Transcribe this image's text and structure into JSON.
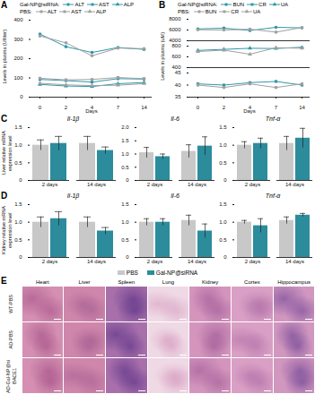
{
  "chart_data": [
    {
      "panel": "A",
      "type": "line",
      "x_label": "Days",
      "y_label": "Levels in plasma (U/liter)",
      "categories": [
        "0",
        "2",
        "4",
        "7",
        "14"
      ],
      "ylim": [
        0,
        400
      ],
      "yticks": [
        0,
        100,
        200,
        300,
        400
      ],
      "legend": "top",
      "series": [
        {
          "group": "Gal-NP@siRNA:",
          "name": "ALT",
          "color": "#2f98a8",
          "marker": "circle",
          "values": [
            328,
            262,
            232,
            258,
            248
          ]
        },
        {
          "group": "Gal-NP@siRNA:",
          "name": "AST",
          "color": "#2f98a8",
          "marker": "square",
          "values": [
            92,
            86,
            78,
            96,
            94
          ]
        },
        {
          "group": "Gal-NP@siRNA:",
          "name": "ALP",
          "color": "#2f98a8",
          "marker": "triangle",
          "values": [
            66,
            58,
            55,
            70,
            76
          ]
        },
        {
          "group": "PBS:",
          "name": "ALT",
          "color": "#a0a0a0",
          "marker": "circle",
          "values": [
            318,
            282,
            215,
            255,
            252
          ]
        },
        {
          "group": "PBS:",
          "name": "AST",
          "color": "#a0a0a0",
          "marker": "square",
          "values": [
            98,
            90,
            92,
            102,
            96
          ]
        },
        {
          "group": "PBS:",
          "name": "ALP",
          "color": "#a0a0a0",
          "marker": "triangle",
          "values": [
            72,
            64,
            60,
            62,
            70
          ]
        }
      ]
    },
    {
      "panel": "B",
      "type": "line",
      "x_label": "Days",
      "y_label": "Levels in plasma (uM)",
      "categories": [
        "0",
        "2",
        "4",
        "7",
        "14"
      ],
      "legend": "top",
      "segments": [
        {
          "ylim": [
            4000,
            8000
          ],
          "yticks": [
            4000,
            6000,
            8000
          ]
        },
        {
          "ylim": [
            400,
            800
          ],
          "yticks": [
            400,
            600,
            800
          ]
        },
        {
          "ylim": [
            35,
            45
          ],
          "yticks": [
            35,
            40,
            45
          ]
        }
      ],
      "series": [
        {
          "group": "Gal-NP@siRNA:",
          "name": "BUN",
          "segment": 0,
          "color": "#2f98a8",
          "marker": "circle",
          "values": [
            6200,
            6350,
            5900,
            6500,
            6400
          ]
        },
        {
          "group": "Gal-NP@siRNA:",
          "name": "CR",
          "segment": 2,
          "color": "#2f98a8",
          "marker": "square",
          "values": [
            40.5,
            40,
            41,
            41.5,
            40
          ]
        },
        {
          "group": "Gal-NP@siRNA:",
          "name": "UA",
          "segment": 1,
          "color": "#2f98a8",
          "marker": "triangle",
          "values": [
            720,
            740,
            760,
            755,
            780
          ]
        },
        {
          "group": "PBS:",
          "name": "BUN",
          "segment": 0,
          "color": "#a0a0a0",
          "marker": "circle",
          "values": [
            6050,
            6000,
            6150,
            5600,
            6450
          ]
        },
        {
          "group": "PBS:",
          "name": "CR",
          "segment": 2,
          "color": "#a0a0a0",
          "marker": "square",
          "values": [
            40,
            39,
            40.5,
            39,
            40.5
          ]
        },
        {
          "group": "PBS:",
          "name": "UA",
          "segment": 1,
          "color": "#a0a0a0",
          "marker": "triangle",
          "values": [
            700,
            725,
            650,
            770,
            760
          ]
        }
      ]
    },
    {
      "panel": "C",
      "type": "bar",
      "title": "Il-1β",
      "y_label": "Liver relative mRNA expression level",
      "categories": [
        "2 days",
        "14 days"
      ],
      "ylim": [
        0,
        1.5
      ],
      "yticks": [
        0,
        0.5,
        {
          "value": 1,
          "label": "1.0"
        },
        1.5
      ],
      "series": [
        {
          "name": "PBS",
          "color": "#c8c8c8",
          "values": [
            1.0,
            1.05
          ],
          "errors": [
            0.15,
            0.2
          ]
        },
        {
          "name": "Gal-NP@siRNA",
          "color": "#2c8c9c",
          "values": [
            1.05,
            0.85
          ],
          "errors": [
            0.2,
            0.1
          ]
        }
      ]
    },
    {
      "panel": "C",
      "type": "bar",
      "title": "Il-6",
      "categories": [
        "2 days",
        "14 days"
      ],
      "ylim": [
        0,
        2
      ],
      "yticks": [
        0,
        0.5,
        {
          "value": 1,
          "label": "1.0"
        },
        1.5,
        {
          "value": 2,
          "label": "2.0"
        }
      ],
      "series": [
        {
          "name": "PBS",
          "color": "#c8c8c8",
          "values": [
            1.05,
            1.1
          ],
          "errors": [
            0.2,
            0.25
          ]
        },
        {
          "name": "Gal-NP@siRNA",
          "color": "#2c8c9c",
          "values": [
            0.9,
            1.3
          ],
          "errors": [
            0.1,
            0.35
          ]
        }
      ]
    },
    {
      "panel": "C",
      "type": "bar",
      "title": "Tnf-α",
      "categories": [
        "2 days",
        "14 days"
      ],
      "ylim": [
        0,
        1.5
      ],
      "yticks": [
        0,
        0.5,
        {
          "value": 1,
          "label": "1.0"
        },
        1.5
      ],
      "series": [
        {
          "name": "PBS",
          "color": "#c8c8c8",
          "values": [
            1.0,
            1.05
          ],
          "errors": [
            0.1,
            0.2
          ]
        },
        {
          "name": "Gal-NP@siRNA",
          "color": "#2c8c9c",
          "values": [
            1.05,
            1.2
          ],
          "errors": [
            0.15,
            0.28
          ]
        }
      ]
    },
    {
      "panel": "D",
      "type": "bar",
      "title": "Il-1β",
      "y_label": "Kidney relative mRNA expression level",
      "legend": "bottom",
      "categories": [
        "2 days",
        "14 days"
      ],
      "ylim": [
        0,
        1.5
      ],
      "yticks": [
        0,
        0.5,
        {
          "value": 1,
          "label": "1.0"
        },
        1.5
      ],
      "series": [
        {
          "name": "PBS",
          "color": "#c8c8c8",
          "values": [
            1.0,
            1.0
          ],
          "errors": [
            0.15,
            0.15
          ]
        },
        {
          "name": "Gal-NP@siRNA",
          "color": "#2c8c9c",
          "values": [
            1.1,
            0.75
          ],
          "errors": [
            0.2,
            0.1
          ]
        }
      ]
    },
    {
      "panel": "D",
      "type": "bar",
      "title": "Il-6",
      "categories": [
        "2 days",
        "14 days"
      ],
      "ylim": [
        0,
        1.5
      ],
      "yticks": [
        0,
        0.5,
        {
          "value": 1,
          "label": "1.0"
        },
        1.5
      ],
      "series": [
        {
          "name": "PBS",
          "color": "#c8c8c8",
          "values": [
            1.0,
            1.05
          ],
          "errors": [
            0.1,
            0.15
          ]
        },
        {
          "name": "Gal-NP@siRNA",
          "color": "#2c8c9c",
          "values": [
            1.0,
            0.75
          ],
          "errors": [
            0.1,
            0.2
          ]
        }
      ]
    },
    {
      "panel": "D",
      "type": "bar",
      "title": "Tnf-α",
      "categories": [
        "2 days",
        "14 days"
      ],
      "ylim": [
        0,
        1.5
      ],
      "yticks": [
        0,
        0.5,
        {
          "value": 1,
          "label": "1.0"
        },
        1.5
      ],
      "series": [
        {
          "name": "PBS",
          "color": "#c8c8c8",
          "values": [
            1.0,
            1.05
          ],
          "errors": [
            0.05,
            0.1
          ]
        },
        {
          "name": "Gal-NP@siRNA",
          "color": "#2c8c9c",
          "values": [
            0.9,
            1.2
          ],
          "errors": [
            0.2,
            0.05
          ]
        }
      ]
    }
  ],
  "image_grid": {
    "panel": "E",
    "columns": [
      "Heart",
      "Liver",
      "Spleen",
      "Lung",
      "Kidney",
      "Cortex",
      "Hippocampus"
    ],
    "rows": [
      "WT-PBS",
      "AD-PBS",
      "AD-Gal-NP@siBACE1"
    ]
  }
}
